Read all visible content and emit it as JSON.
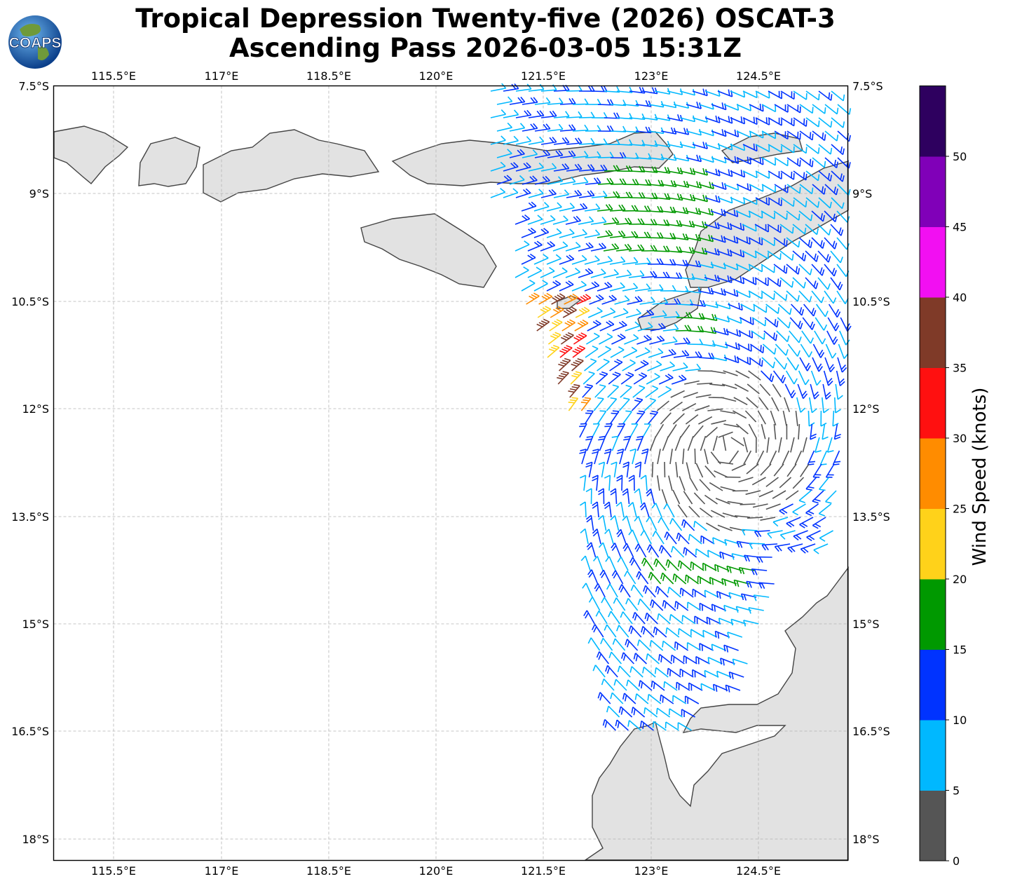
{
  "header": {
    "title_line1": "Tropical Depression Twenty-five (2026) OSCAT-3",
    "title_line2": "Ascending Pass 2026-03-05 15:31Z",
    "logo_text": "COAPS"
  },
  "map": {
    "lon_labels": [
      "115.5°E",
      "117°E",
      "118.5°E",
      "120°E",
      "121.5°E",
      "123°E",
      "124.5°E"
    ],
    "lat_labels": [
      "7.5°S",
      "9°S",
      "10.5°S",
      "12°S",
      "13.5°S",
      "15°S",
      "16.5°S",
      "18°S"
    ],
    "land_color": "#e2e2e2",
    "coast_color": "#444444"
  },
  "colorbar": {
    "label": "Wind Speed (knots)",
    "ticks": [
      "0",
      "5",
      "10",
      "15",
      "20",
      "25",
      "30",
      "35",
      "40",
      "45",
      "50"
    ],
    "colors": [
      "#555555",
      "#00b8ff",
      "#0033ff",
      "#009900",
      "#ffd21a",
      "#ff8c00",
      "#ff1010",
      "#7f3a28",
      "#f20ff2",
      "#8000b8",
      "#2e005f"
    ]
  }
}
